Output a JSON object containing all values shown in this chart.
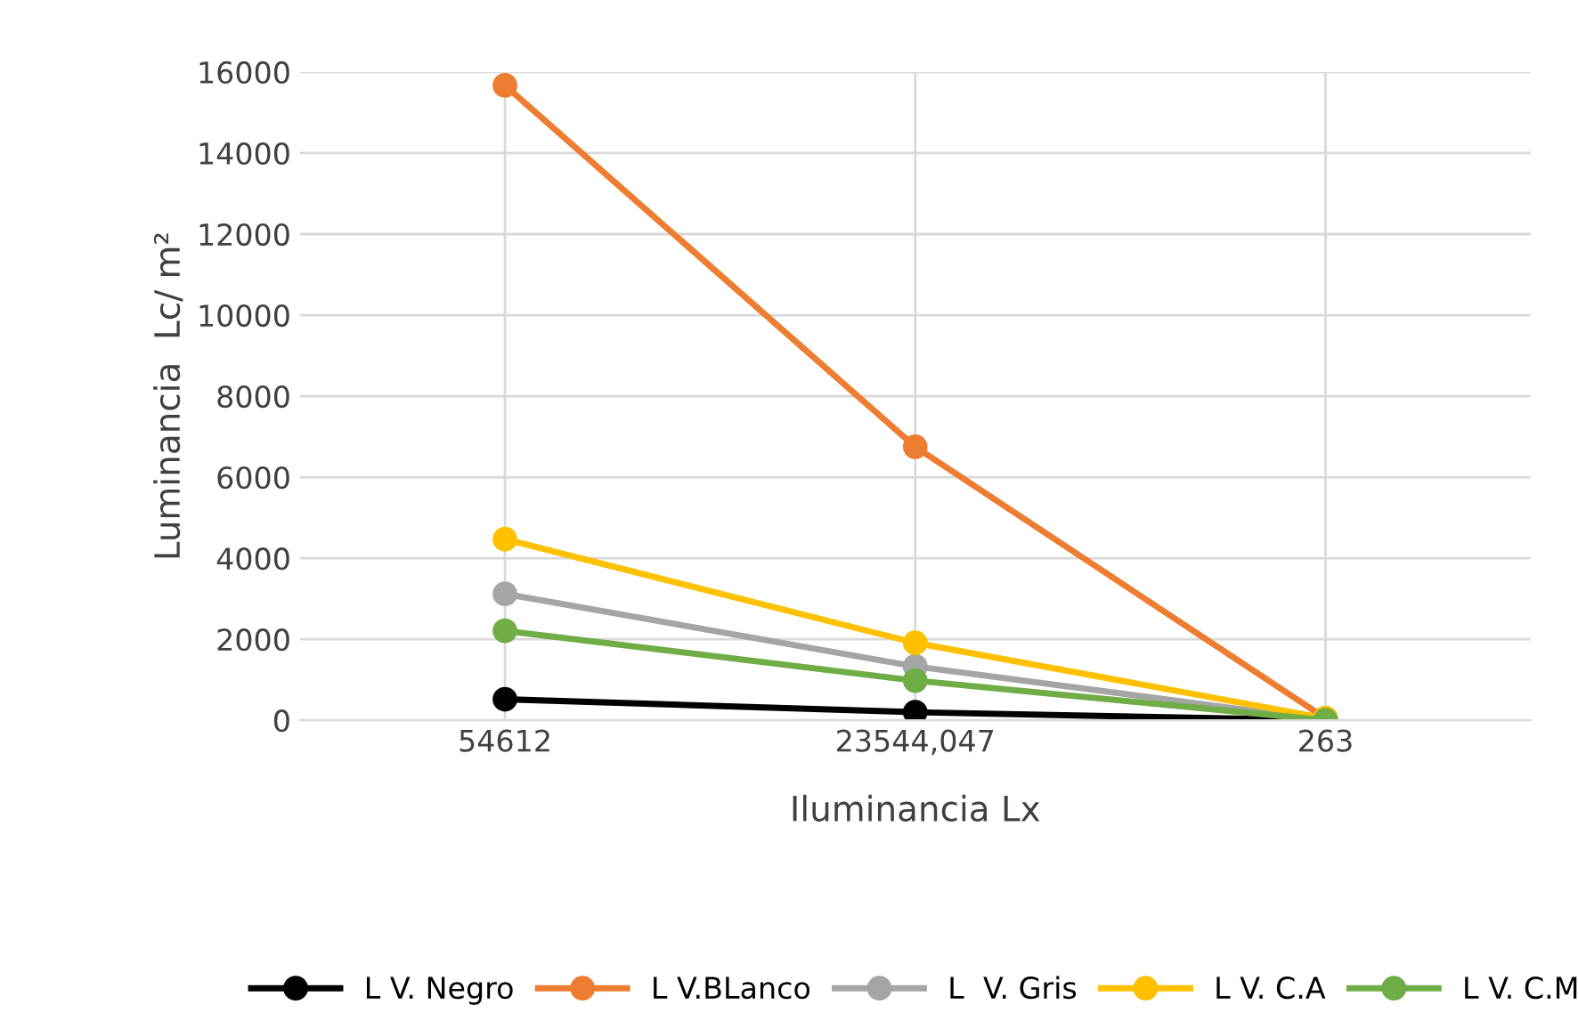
{
  "chart_data": {
    "type": "line",
    "xlabel": "Iluminancia Lx",
    "ylabel": "Luminancia  Lc/ m²",
    "categories": [
      "54612",
      "23544,047",
      "263"
    ],
    "series": [
      {
        "name": "L V. Negro",
        "color": "#000000",
        "values": [
          520,
          200,
          0
        ]
      },
      {
        "name": "L V.BLanco",
        "color": "#ed7d31",
        "values": [
          15670,
          6750,
          50
        ]
      },
      {
        "name": "L  V. Gris",
        "color": "#a5a5a5",
        "values": [
          3120,
          1330,
          0
        ]
      },
      {
        "name": "L V. C.A",
        "color": "#ffc000",
        "values": [
          4470,
          1910,
          50
        ]
      },
      {
        "name": "L V. C.M",
        "color": "#70ad47",
        "values": [
          2210,
          980,
          0
        ]
      }
    ],
    "ylim": [
      0,
      16000
    ],
    "yticks": [
      0,
      2000,
      4000,
      6000,
      8000,
      10000,
      12000,
      14000,
      16000
    ],
    "grid": true,
    "legend": "bottom",
    "marker": "circle",
    "line_style": "solid"
  }
}
